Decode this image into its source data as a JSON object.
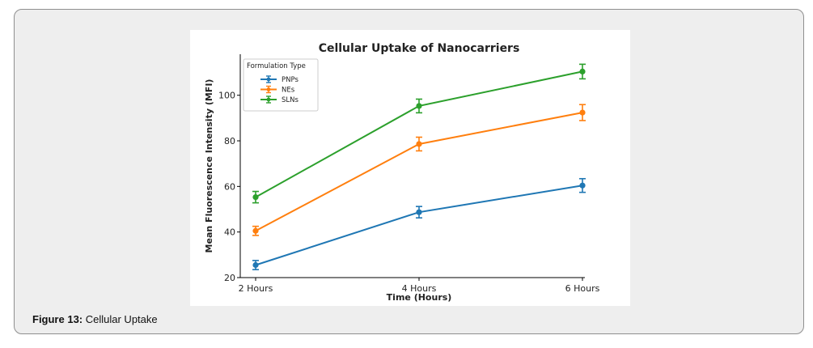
{
  "caption": {
    "label": "Figure 13:",
    "text": "Cellular Uptake"
  },
  "colors": {
    "PNPs": "#1f77b4",
    "NEs": "#ff7f0e",
    "SLNs": "#2ca02c"
  },
  "chart_data": {
    "type": "line",
    "title": "Cellular Uptake of Nanocarriers",
    "xlabel": "Time (Hours)",
    "ylabel": "Mean Fluorescence Intensity (MFI)",
    "categories": [
      "2 Hours",
      "4 Hours",
      "6 Hours"
    ],
    "yticks": [
      20,
      40,
      60,
      80,
      100
    ],
    "ylim": [
      20,
      118
    ],
    "grid": false,
    "legend": {
      "title": "Formulation Type",
      "position": "top-left"
    },
    "series": [
      {
        "name": "PNPs",
        "values": [
          25.5,
          48.7,
          60.4
        ],
        "errors": [
          2,
          2.5,
          3
        ]
      },
      {
        "name": "NEs",
        "values": [
          40.5,
          78.6,
          92.4
        ],
        "errors": [
          2,
          3,
          3.5
        ]
      },
      {
        "name": "SLNs",
        "values": [
          55.3,
          95.3,
          110.4
        ],
        "errors": [
          2.5,
          3,
          3.2
        ]
      }
    ]
  }
}
